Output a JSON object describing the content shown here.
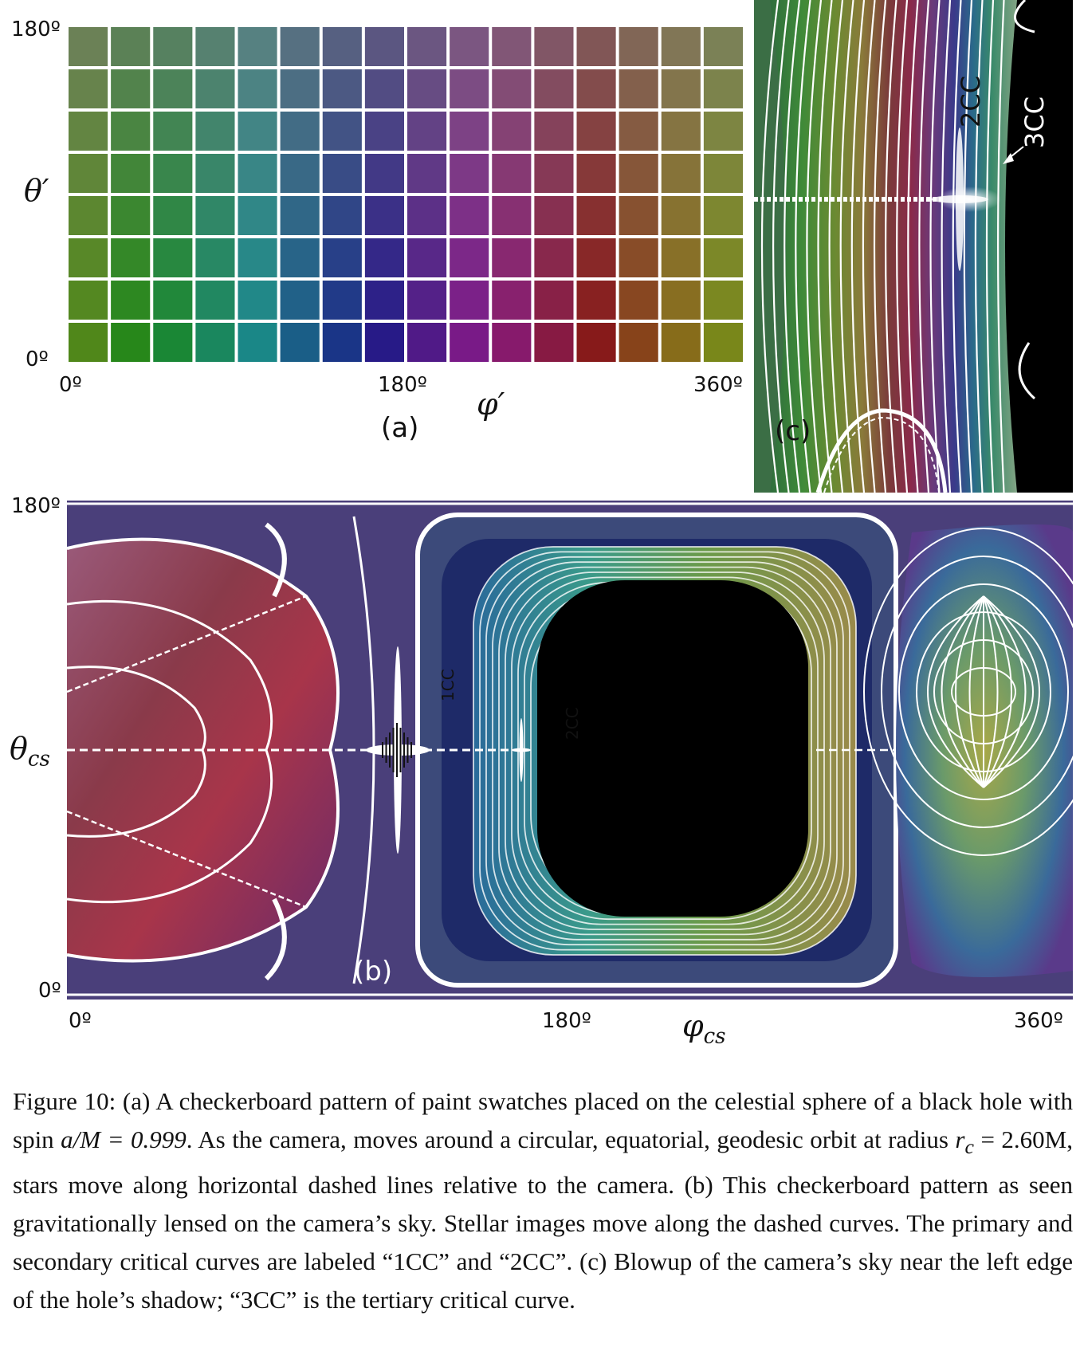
{
  "panel_a": {
    "letter": "(a)",
    "y_axis": {
      "symbol": "θ′",
      "max_label": "180º",
      "min_label": "0º"
    },
    "x_axis": {
      "symbol": "φ′",
      "min_label": "0º",
      "mid_label": "180º",
      "max_label": "360º"
    },
    "grid": {
      "cols": 16,
      "rows": 8
    }
  },
  "panel_b": {
    "letter": "(b)",
    "y_axis": {
      "symbol_base": "θ",
      "symbol_sub": "cs",
      "max_label": "180º",
      "min_label": "0º"
    },
    "x_axis": {
      "symbol_base": "φ",
      "symbol_sub": "cs",
      "min_label": "0º",
      "mid_label": "180º",
      "max_label": "360º"
    },
    "curve_labels": {
      "primary": "1CC",
      "secondary": "2CC"
    }
  },
  "panel_c": {
    "letter": "(c)",
    "curve_labels": {
      "secondary": "2CC",
      "tertiary": "3CC"
    }
  },
  "caption": {
    "p1": "Figure 10: (a) A checkerboard pattern of paint swatches placed on the celestial sphere of a black hole with spin ",
    "spin_expr": "a/M = 0.999",
    "p2": ". As the camera, moves around a circular, equatorial, geodesic orbit at radius ",
    "radius_expr": "r",
    "radius_sub": "c",
    "radius_val": " = 2.60M",
    "p3": ", stars move along horizontal dashed lines relative to the camera. (b) This checkerboard pattern as seen gravitationally lensed on the camera’s sky. Stellar images move along the dashed curves. The primary and secondary critical curves are labeled “1CC” and “2CC”. (c) Blowup of the camera’s sky near the left edge of the hole’s shadow; “3CC” is the tertiary critical curve."
  },
  "colors": {
    "shadow": "#000000",
    "lensed_background": "#4a3f7a",
    "grid_line": "#ffffff"
  }
}
